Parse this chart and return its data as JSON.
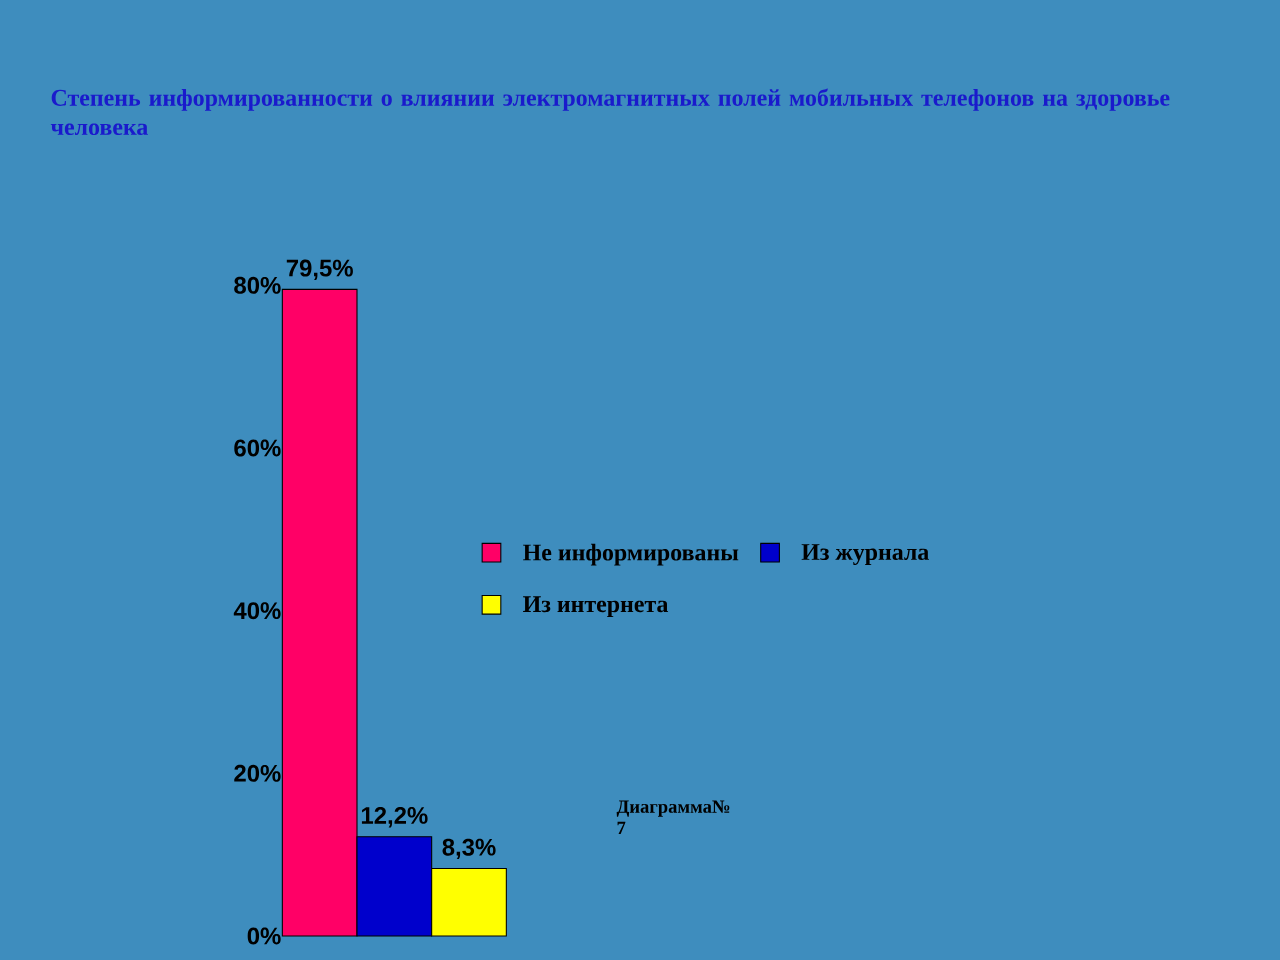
{
  "chart_data": {
    "type": "bar",
    "title": "Степень информированности о влиянии электромагнитных полей мобильных телефонов на здоровье человека",
    "categories": [
      null
    ],
    "series": [
      {
        "name": "Не информированы",
        "color": "#ff0066",
        "values": [
          79.5
        ],
        "value_labels": [
          "79,5%"
        ]
      },
      {
        "name": "Из журнала",
        "color": "#0000cc",
        "values": [
          12.2
        ],
        "value_labels": [
          "12,2%"
        ]
      },
      {
        "name": "Из интернета",
        "color": "#ffff00",
        "values": [
          8.3
        ],
        "value_labels": [
          "8,3%"
        ]
      }
    ],
    "ylim": [
      0,
      80
    ],
    "yticks": [
      {
        "value": 0,
        "label": "0%"
      },
      {
        "value": 20,
        "label": "20%"
      },
      {
        "value": 40,
        "label": "40%"
      },
      {
        "value": 60,
        "label": "60%"
      },
      {
        "value": 80,
        "label": "80%"
      }
    ],
    "legend": "right",
    "annotations": [
      "Диаграмма№ 7"
    ]
  }
}
